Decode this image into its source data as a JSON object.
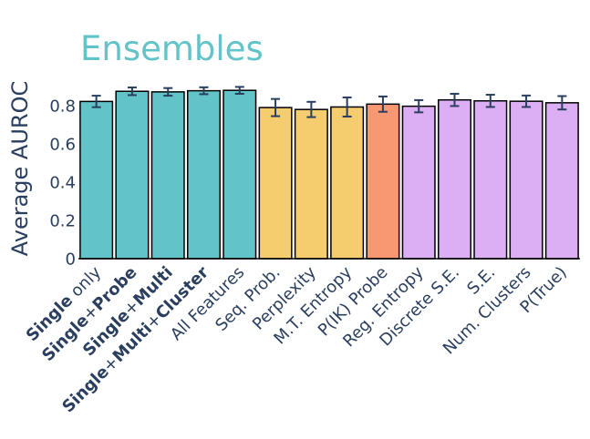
{
  "chart_data": {
    "type": "bar",
    "title": "Ensembles",
    "ylabel": "Average AUROC",
    "ylim": [
      0,
      0.9
    ],
    "yticks": [
      0,
      0.2,
      0.4,
      0.6,
      0.8
    ],
    "grid": false,
    "categories": [
      [
        {
          "t": "Single",
          "b": true
        },
        {
          "t": " only",
          "b": false
        }
      ],
      [
        {
          "t": "Single",
          "b": true
        },
        {
          "t": "+",
          "b": false
        },
        {
          "t": "Probe",
          "b": true
        }
      ],
      [
        {
          "t": "Single",
          "b": true
        },
        {
          "t": "+",
          "b": false
        },
        {
          "t": "Multi",
          "b": true
        }
      ],
      [
        {
          "t": "Single",
          "b": true
        },
        {
          "t": "+",
          "b": false
        },
        {
          "t": "Multi",
          "b": true
        },
        {
          "t": "+",
          "b": false
        },
        {
          "t": "Cluster",
          "b": true
        }
      ],
      [
        {
          "t": "All Features",
          "b": false
        }
      ],
      [
        {
          "t": "Seq. Prob.",
          "b": false
        }
      ],
      [
        {
          "t": "Perplexity",
          "b": false
        }
      ],
      [
        {
          "t": "M.T. Entropy",
          "b": false
        }
      ],
      [
        {
          "t": "P(IK) Probe",
          "b": false
        }
      ],
      [
        {
          "t": "Reg. Entropy",
          "b": false
        }
      ],
      [
        {
          "t": "Discrete S.E.",
          "b": false
        }
      ],
      [
        {
          "t": "S.E.",
          "b": false
        }
      ],
      [
        {
          "t": "Num. Clusters",
          "b": false
        }
      ],
      [
        {
          "t": "P(True)",
          "b": false
        }
      ]
    ],
    "values": [
      0.822,
      0.875,
      0.872,
      0.878,
      0.88,
      0.79,
      0.78,
      0.793,
      0.808,
      0.797,
      0.83,
      0.825,
      0.823,
      0.815
    ],
    "errors": [
      0.03,
      0.02,
      0.02,
      0.018,
      0.018,
      0.045,
      0.04,
      0.05,
      0.04,
      0.032,
      0.032,
      0.032,
      0.03,
      0.035
    ],
    "colors": [
      "#62c3c9",
      "#62c3c9",
      "#62c3c9",
      "#62c3c9",
      "#62c3c9",
      "#f5cd6e",
      "#f5cd6e",
      "#f5cd6e",
      "#f79873",
      "#dcaef3",
      "#dcaef3",
      "#dcaef3",
      "#dcaef3",
      "#dcaef3"
    ],
    "title_color": "#62c3c9",
    "text_color": "#2a3f5f",
    "error_color": "#2a3f5f",
    "bar_outline": "#000000"
  }
}
